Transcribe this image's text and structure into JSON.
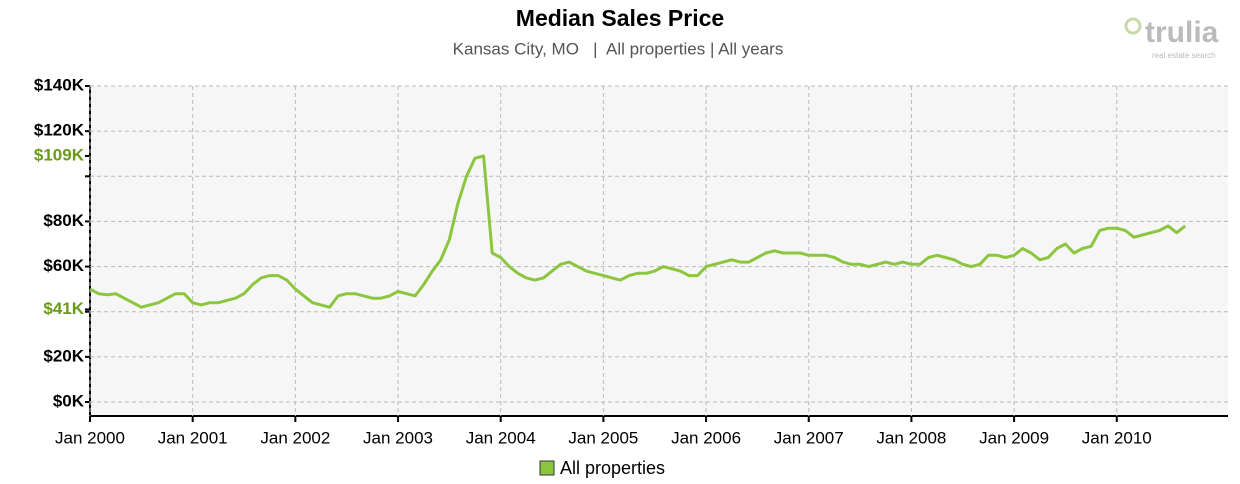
{
  "chart_data": {
    "type": "line",
    "title": "Median Sales Price",
    "subtitle": "Kansas City, MO   |  All properties | All years",
    "logo": "trulia",
    "logo_tagline": "real estate search",
    "x": [
      "2000-01",
      "2000-02",
      "2000-03",
      "2000-04",
      "2000-05",
      "2000-06",
      "2000-07",
      "2000-08",
      "2000-09",
      "2000-10",
      "2000-11",
      "2000-12",
      "2001-01",
      "2001-02",
      "2001-03",
      "2001-04",
      "2001-05",
      "2001-06",
      "2001-07",
      "2001-08",
      "2001-09",
      "2001-10",
      "2001-11",
      "2001-12",
      "2002-01",
      "2002-02",
      "2002-03",
      "2002-04",
      "2002-05",
      "2002-06",
      "2002-07",
      "2002-08",
      "2002-09",
      "2002-10",
      "2002-11",
      "2002-12",
      "2003-01",
      "2003-02",
      "2003-03",
      "2003-04",
      "2003-05",
      "2003-06",
      "2003-07",
      "2003-08",
      "2003-09",
      "2003-10",
      "2003-11",
      "2003-12",
      "2004-01",
      "2004-02",
      "2004-03",
      "2004-04",
      "2004-05",
      "2004-06",
      "2004-07",
      "2004-08",
      "2004-09",
      "2004-10",
      "2004-11",
      "2004-12",
      "2005-01",
      "2005-02",
      "2005-03",
      "2005-04",
      "2005-05",
      "2005-06",
      "2005-07",
      "2005-08",
      "2005-09",
      "2005-10",
      "2005-11",
      "2005-12",
      "2006-01",
      "2006-02",
      "2006-03",
      "2006-04",
      "2006-05",
      "2006-06",
      "2006-07",
      "2006-08",
      "2006-09",
      "2006-10",
      "2006-11",
      "2006-12",
      "2007-01",
      "2007-02",
      "2007-03",
      "2007-04",
      "2007-05",
      "2007-06",
      "2007-07",
      "2007-08",
      "2007-09",
      "2007-10",
      "2007-11",
      "2007-12",
      "2008-01",
      "2008-02",
      "2008-03",
      "2008-04",
      "2008-05",
      "2008-06",
      "2008-07",
      "2008-08",
      "2008-09",
      "2008-10",
      "2008-11",
      "2008-12",
      "2009-01",
      "2009-02",
      "2009-03",
      "2009-04",
      "2009-05",
      "2009-06",
      "2009-07",
      "2009-08",
      "2009-09",
      "2009-10",
      "2009-11",
      "2009-12",
      "2010-01",
      "2010-02",
      "2010-03",
      "2010-04",
      "2010-05",
      "2010-06",
      "2010-07",
      "2010-08",
      "2010-09"
    ],
    "series": [
      {
        "name": "All properties",
        "color": "#8cc63f",
        "values": [
          50,
          48,
          47.5,
          48,
          46,
          44,
          42,
          43,
          44,
          46,
          48,
          48,
          44,
          43,
          44,
          44,
          45,
          46,
          48,
          52,
          55,
          56,
          56,
          54,
          50,
          47,
          44,
          43,
          42,
          47,
          48,
          48,
          47,
          46,
          46,
          47,
          49,
          48,
          47,
          52,
          58,
          63,
          72,
          88,
          100,
          108,
          109,
          66,
          64,
          60,
          57,
          55,
          54,
          55,
          58,
          61,
          62,
          60,
          58,
          57,
          56,
          55,
          54,
          56,
          57,
          57,
          58,
          60,
          59,
          58,
          56,
          56,
          60,
          61,
          62,
          63,
          62,
          62,
          64,
          66,
          67,
          66,
          66,
          66,
          65,
          65,
          65,
          64,
          62,
          61,
          61,
          60,
          61,
          62,
          61,
          62,
          61,
          61,
          64,
          65,
          64,
          63,
          61,
          60,
          61,
          65,
          65,
          64,
          65,
          68,
          66,
          63,
          64,
          68,
          70,
          66,
          68,
          69,
          76,
          77,
          77,
          76,
          73,
          74,
          75,
          76,
          78,
          75,
          78
        ]
      }
    ],
    "xlim": [
      "2000-01",
      "2011-02"
    ],
    "xticks": [
      {
        "value": "2000-01",
        "label": "Jan 2000"
      },
      {
        "value": "2001-01",
        "label": "Jan 2001"
      },
      {
        "value": "2002-01",
        "label": "Jan 2002"
      },
      {
        "value": "2003-01",
        "label": "Jan 2003"
      },
      {
        "value": "2004-01",
        "label": "Jan 2004"
      },
      {
        "value": "2005-01",
        "label": "Jan 2005"
      },
      {
        "value": "2006-01",
        "label": "Jan 2006"
      },
      {
        "value": "2007-01",
        "label": "Jan 2007"
      },
      {
        "value": "2008-01",
        "label": "Jan 2008"
      },
      {
        "value": "2009-01",
        "label": "Jan 2009"
      },
      {
        "value": "2010-01",
        "label": "Jan 2010"
      }
    ],
    "ylim": [
      0,
      140
    ],
    "yticks": [
      {
        "value": 0,
        "label": "$0K"
      },
      {
        "value": 20,
        "label": "$20K"
      },
      {
        "value": 60,
        "label": "$60K"
      },
      {
        "value": 80,
        "label": "$80K"
      },
      {
        "value": 120,
        "label": "$120K"
      },
      {
        "value": 140,
        "label": "$140K"
      }
    ],
    "grid_yticks": [
      0,
      20,
      40,
      60,
      80,
      100,
      120,
      140
    ],
    "highlight_yticks": [
      {
        "value": 41,
        "label": "$41K"
      },
      {
        "value": 109,
        "label": "$109K"
      }
    ],
    "highlight_color": "#6b9a1a",
    "grid": true
  }
}
